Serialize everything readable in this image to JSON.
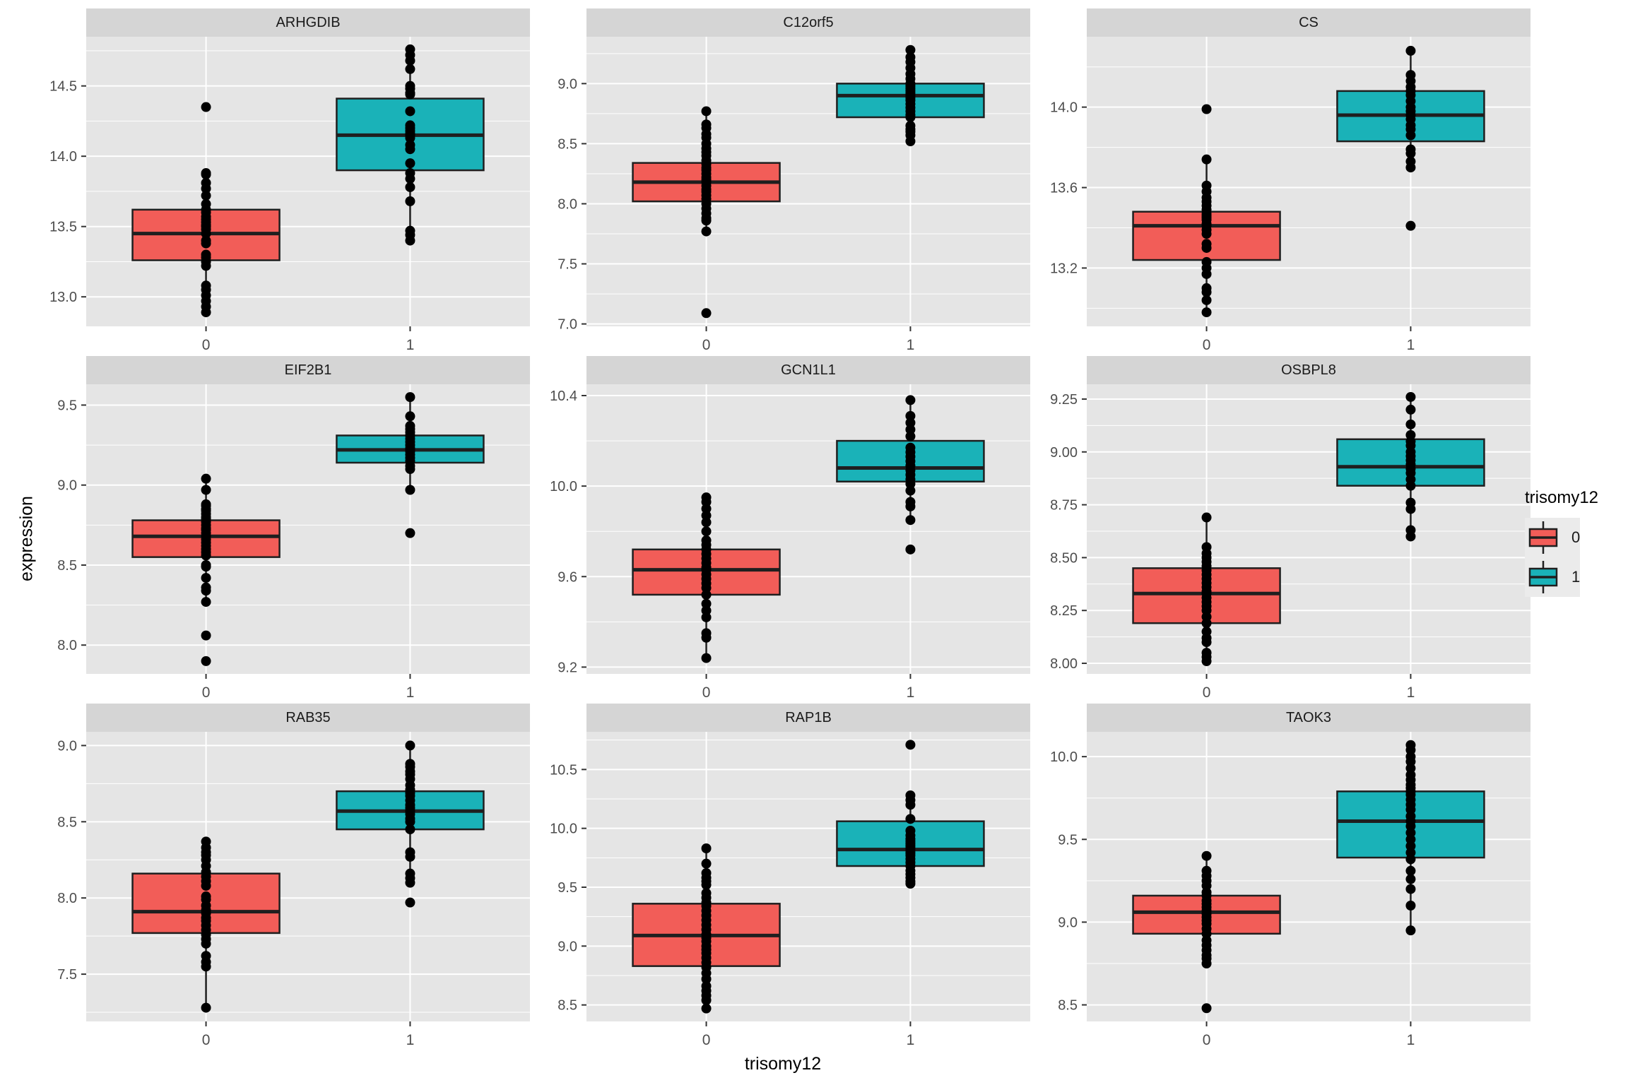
{
  "figure": {
    "y_axis_title": "expression",
    "x_axis_title": "trisomy12",
    "legend": {
      "title": "trisomy12",
      "entries": [
        {
          "label": "0",
          "color_key": "group0"
        },
        {
          "label": "1",
          "color_key": "group1"
        }
      ]
    },
    "colors": {
      "panel_bg": "#E5E5E5",
      "strip_bg": "#D5D5D5",
      "grid": "#FFFFFF",
      "box_stroke": "#1F1F1F",
      "point": "#000000",
      "tick_label": "#4D4D4D",
      "tick_mark": "#333333",
      "legend_key_bg": "#EBEBEB",
      "group0": "#F25D58",
      "group1": "#1AB2B8"
    }
  },
  "chart_data": {
    "type": "boxplot",
    "facet_by": "gene",
    "x_variable": "trisomy12",
    "y_variable": "expression",
    "x_categories": [
      "0",
      "1"
    ],
    "legend_position": "right",
    "grid": true,
    "panels": [
      {
        "title": "ARHGDIB",
        "ylim": [
          12.79,
          14.85
        ],
        "yticks": [
          13.0,
          13.5,
          14.0,
          14.5
        ],
        "ytick_labels": [
          "13.0",
          "13.5",
          "14.0",
          "14.5"
        ],
        "groups": [
          {
            "x": "0",
            "color_key": "group0",
            "whisker_low": 12.89,
            "q1": 13.26,
            "median": 13.45,
            "q3": 13.62,
            "whisker_high": 13.88,
            "points": [
              14.35,
              13.88,
              13.87,
              13.81,
              13.77,
              13.72,
              13.66,
              13.62,
              13.6,
              13.57,
              13.55,
              13.53,
              13.51,
              13.5,
              13.48,
              13.45,
              13.4,
              13.38,
              13.3,
              13.28,
              13.25,
              13.22,
              13.08,
              13.05,
              13.01,
              12.97,
              12.93,
              12.89
            ]
          },
          {
            "x": "1",
            "color_key": "group1",
            "whisker_low": 13.4,
            "q1": 13.9,
            "median": 14.15,
            "q3": 14.41,
            "whisker_high": 14.76,
            "points": [
              14.76,
              14.72,
              14.68,
              14.62,
              14.5,
              14.48,
              14.45,
              14.44,
              14.32,
              14.22,
              14.2,
              14.18,
              14.16,
              14.15,
              14.13,
              14.08,
              14.05,
              13.95,
              13.88,
              13.84,
              13.78,
              13.68,
              13.47,
              13.44,
              13.4
            ]
          }
        ]
      },
      {
        "title": "C12orf5",
        "ylim": [
          6.98,
          9.39
        ],
        "yticks": [
          7.0,
          7.5,
          8.0,
          8.5,
          9.0
        ],
        "ytick_labels": [
          "7.0",
          "7.5",
          "8.0",
          "8.5",
          "9.0"
        ],
        "groups": [
          {
            "x": "0",
            "color_key": "group0",
            "whisker_low": 7.77,
            "q1": 8.02,
            "median": 8.18,
            "q3": 8.34,
            "whisker_high": 8.77,
            "points": [
              8.77,
              8.66,
              8.63,
              8.58,
              8.55,
              8.5,
              8.46,
              8.43,
              8.4,
              8.36,
              8.33,
              8.3,
              8.28,
              8.25,
              8.22,
              8.2,
              8.18,
              8.15,
              8.12,
              8.1,
              8.07,
              8.04,
              8.0,
              7.96,
              7.92,
              7.88,
              7.86,
              7.77,
              7.09
            ]
          },
          {
            "x": "1",
            "color_key": "group1",
            "whisker_low": 8.52,
            "q1": 8.72,
            "median": 8.9,
            "q3": 9.0,
            "whisker_high": 9.28,
            "points": [
              9.28,
              9.22,
              9.18,
              9.13,
              9.08,
              9.04,
              9.0,
              8.98,
              8.96,
              8.94,
              8.92,
              8.9,
              8.88,
              8.86,
              8.83,
              8.8,
              8.77,
              8.74,
              8.72,
              8.65,
              8.62,
              8.6,
              8.57,
              8.52
            ]
          }
        ]
      },
      {
        "title": "CS",
        "ylim": [
          12.91,
          14.35
        ],
        "yticks": [
          13.2,
          13.6,
          14.0
        ],
        "ytick_labels": [
          "13.2",
          "13.6",
          "14.0"
        ],
        "groups": [
          {
            "x": "0",
            "color_key": "group0",
            "whisker_low": 12.98,
            "q1": 13.24,
            "median": 13.41,
            "q3": 13.48,
            "whisker_high": 13.74,
            "points": [
              13.99,
              13.74,
              13.61,
              13.58,
              13.55,
              13.53,
              13.51,
              13.49,
              13.47,
              13.46,
              13.45,
              13.44,
              13.42,
              13.41,
              13.39,
              13.37,
              13.32,
              13.3,
              13.23,
              13.2,
              13.17,
              13.1,
              13.08,
              13.04,
              12.98
            ]
          },
          {
            "x": "1",
            "color_key": "group1",
            "whisker_low": 13.7,
            "q1": 13.83,
            "median": 13.96,
            "q3": 14.08,
            "whisker_high": 14.28,
            "points": [
              14.28,
              14.16,
              14.13,
              14.1,
              14.08,
              14.06,
              14.03,
              14.0,
              13.98,
              13.96,
              13.94,
              13.91,
              13.89,
              13.86,
              13.79,
              13.77,
              13.73,
              13.7,
              13.41
            ]
          }
        ]
      },
      {
        "title": "EIF2B1",
        "ylim": [
          7.82,
          9.63
        ],
        "yticks": [
          8.0,
          8.5,
          9.0,
          9.5
        ],
        "ytick_labels": [
          "8.0",
          "8.5",
          "9.0",
          "9.5"
        ],
        "groups": [
          {
            "x": "0",
            "color_key": "group0",
            "whisker_low": 8.27,
            "q1": 8.55,
            "median": 8.68,
            "q3": 8.78,
            "whisker_high": 9.04,
            "points": [
              9.04,
              8.97,
              8.88,
              8.87,
              8.85,
              8.84,
              8.82,
              8.8,
              8.79,
              8.77,
              8.75,
              8.73,
              8.72,
              8.7,
              8.68,
              8.66,
              8.64,
              8.62,
              8.6,
              8.58,
              8.56,
              8.5,
              8.49,
              8.42,
              8.36,
              8.34,
              8.27,
              8.06,
              7.9
            ]
          },
          {
            "x": "1",
            "color_key": "group1",
            "whisker_low": 8.97,
            "q1": 9.14,
            "median": 9.22,
            "q3": 9.31,
            "whisker_high": 9.55,
            "points": [
              9.55,
              9.43,
              9.37,
              9.35,
              9.33,
              9.31,
              9.29,
              9.27,
              9.25,
              9.23,
              9.22,
              9.21,
              9.19,
              9.17,
              9.15,
              9.12,
              9.1,
              8.97,
              8.7
            ]
          }
        ]
      },
      {
        "title": "GCN1L1",
        "ylim": [
          9.17,
          10.45
        ],
        "yticks": [
          9.2,
          9.6,
          10.0,
          10.4
        ],
        "ytick_labels": [
          "9.2",
          "9.6",
          "10.0",
          "10.4"
        ],
        "groups": [
          {
            "x": "0",
            "color_key": "group0",
            "whisker_low": 9.24,
            "q1": 9.52,
            "median": 9.63,
            "q3": 9.72,
            "whisker_high": 9.95,
            "points": [
              9.95,
              9.93,
              9.9,
              9.87,
              9.84,
              9.8,
              9.76,
              9.74,
              9.72,
              9.7,
              9.68,
              9.66,
              9.64,
              9.63,
              9.61,
              9.59,
              9.57,
              9.55,
              9.52,
              9.48,
              9.45,
              9.42,
              9.35,
              9.33,
              9.24
            ]
          },
          {
            "x": "1",
            "color_key": "group1",
            "whisker_low": 9.85,
            "q1": 10.02,
            "median": 10.08,
            "q3": 10.2,
            "whisker_high": 10.38,
            "points": [
              10.38,
              10.31,
              10.28,
              10.25,
              10.22,
              10.17,
              10.15,
              10.13,
              10.11,
              10.09,
              10.07,
              10.05,
              10.03,
              10.01,
              9.98,
              9.93,
              9.91,
              9.85,
              9.72
            ]
          }
        ]
      },
      {
        "title": "OSBPL8",
        "ylim": [
          7.95,
          9.32
        ],
        "yticks": [
          8.0,
          8.25,
          8.5,
          8.75,
          9.0,
          9.25
        ],
        "ytick_labels": [
          "8.00",
          "8.25",
          "8.50",
          "8.75",
          "9.00",
          "9.25"
        ],
        "groups": [
          {
            "x": "0",
            "color_key": "group0",
            "whisker_low": 8.01,
            "q1": 8.19,
            "median": 8.33,
            "q3": 8.45,
            "whisker_high": 8.69,
            "points": [
              8.69,
              8.55,
              8.52,
              8.5,
              8.48,
              8.46,
              8.44,
              8.42,
              8.4,
              8.38,
              8.36,
              8.34,
              8.33,
              8.31,
              8.29,
              8.27,
              8.25,
              8.22,
              8.19,
              8.15,
              8.12,
              8.1,
              8.05,
              8.03,
              8.01
            ]
          },
          {
            "x": "1",
            "color_key": "group1",
            "whisker_low": 8.6,
            "q1": 8.84,
            "median": 8.93,
            "q3": 9.06,
            "whisker_high": 9.26,
            "points": [
              9.26,
              9.2,
              9.13,
              9.08,
              9.05,
              9.03,
              9.0,
              8.98,
              8.96,
              8.94,
              8.92,
              8.9,
              8.87,
              8.84,
              8.76,
              8.73,
              8.63,
              8.6
            ]
          }
        ]
      },
      {
        "title": "RAB35",
        "ylim": [
          7.19,
          9.09
        ],
        "yticks": [
          7.5,
          8.0,
          8.5,
          9.0
        ],
        "ytick_labels": [
          "7.5",
          "8.0",
          "8.5",
          "9.0"
        ],
        "groups": [
          {
            "x": "0",
            "color_key": "group0",
            "whisker_low": 7.28,
            "q1": 7.77,
            "median": 7.91,
            "q3": 8.16,
            "whisker_high": 8.37,
            "points": [
              8.37,
              8.33,
              8.3,
              8.28,
              8.25,
              8.21,
              8.17,
              8.14,
              8.11,
              8.08,
              8.01,
              7.99,
              7.95,
              7.92,
              7.9,
              7.87,
              7.85,
              7.82,
              7.79,
              7.76,
              7.73,
              7.7,
              7.62,
              7.58,
              7.55,
              7.28
            ]
          },
          {
            "x": "1",
            "color_key": "group1",
            "whisker_low": 8.1,
            "q1": 8.45,
            "median": 8.57,
            "q3": 8.7,
            "whisker_high": 9.0,
            "points": [
              9.0,
              8.88,
              8.86,
              8.83,
              8.81,
              8.78,
              8.74,
              8.71,
              8.69,
              8.67,
              8.64,
              8.61,
              8.59,
              8.57,
              8.55,
              8.52,
              8.5,
              8.45,
              8.3,
              8.27,
              8.16,
              8.13,
              8.1,
              7.97
            ]
          }
        ]
      },
      {
        "title": "RAP1B",
        "ylim": [
          8.36,
          10.82
        ],
        "yticks": [
          8.5,
          9.0,
          9.5,
          10.0,
          10.5
        ],
        "ytick_labels": [
          "8.5",
          "9.0",
          "9.5",
          "10.0",
          "10.5"
        ],
        "groups": [
          {
            "x": "0",
            "color_key": "group0",
            "whisker_low": 8.47,
            "q1": 8.83,
            "median": 9.09,
            "q3": 9.36,
            "whisker_high": 9.83,
            "points": [
              9.83,
              9.7,
              9.62,
              9.58,
              9.55,
              9.52,
              9.45,
              9.41,
              9.37,
              9.34,
              9.3,
              9.26,
              9.22,
              9.18,
              9.14,
              9.1,
              9.07,
              9.04,
              9.0,
              8.97,
              8.94,
              8.9,
              8.86,
              8.82,
              8.77,
              8.72,
              8.66,
              8.62,
              8.58,
              8.54,
              8.47
            ]
          },
          {
            "x": "1",
            "color_key": "group1",
            "whisker_low": 9.53,
            "q1": 9.68,
            "median": 9.82,
            "q3": 10.06,
            "whisker_high": 10.28,
            "points": [
              10.71,
              10.28,
              10.24,
              10.2,
              10.08,
              9.98,
              9.94,
              9.91,
              9.89,
              9.87,
              9.85,
              9.83,
              9.81,
              9.79,
              9.77,
              9.74,
              9.71,
              9.68,
              9.64,
              9.61,
              9.58,
              9.55,
              9.53
            ]
          }
        ]
      },
      {
        "title": "TAOK3",
        "ylim": [
          8.4,
          10.15
        ],
        "yticks": [
          8.5,
          9.0,
          9.5,
          10.0
        ],
        "ytick_labels": [
          "8.5",
          "9.0",
          "9.5",
          "10.0"
        ],
        "groups": [
          {
            "x": "0",
            "color_key": "group0",
            "whisker_low": 8.75,
            "q1": 8.93,
            "median": 9.06,
            "q3": 9.16,
            "whisker_high": 9.4,
            "points": [
              9.4,
              9.31,
              9.28,
              9.25,
              9.22,
              9.18,
              9.16,
              9.13,
              9.11,
              9.09,
              9.07,
              9.05,
              9.03,
              9.01,
              8.99,
              8.96,
              8.93,
              8.89,
              8.86,
              8.83,
              8.8,
              8.78,
              8.75,
              8.48
            ]
          },
          {
            "x": "1",
            "color_key": "group1",
            "whisker_low": 8.95,
            "q1": 9.39,
            "median": 9.61,
            "q3": 9.79,
            "whisker_high": 10.07,
            "points": [
              10.07,
              10.04,
              10.0,
              9.97,
              9.93,
              9.89,
              9.86,
              9.83,
              9.81,
              9.79,
              9.77,
              9.74,
              9.71,
              9.68,
              9.64,
              9.61,
              9.58,
              9.54,
              9.5,
              9.46,
              9.42,
              9.38,
              9.31,
              9.26,
              9.2,
              9.1,
              8.95
            ]
          }
        ]
      }
    ]
  }
}
